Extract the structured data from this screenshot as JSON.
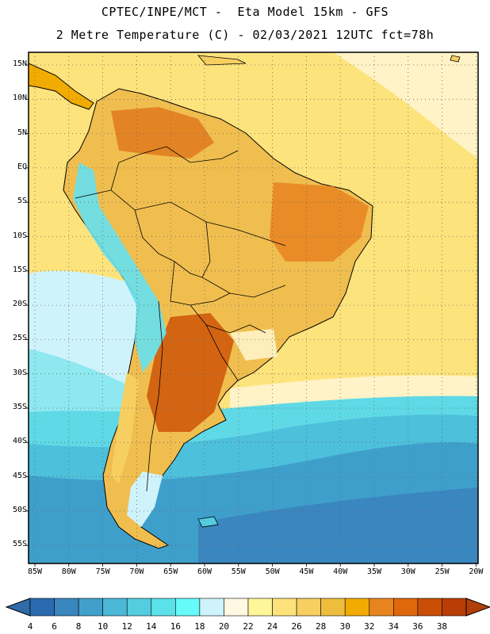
{
  "header": {
    "title_line1": "CPTEC/INPE/MCT -  Eta Model 15km - GFS",
    "title_line2": "2 Metre Temperature (C) - 02/03/2021 12UTC fct=78h"
  },
  "map": {
    "region": "South America",
    "lat_labels": [
      "15N",
      "10N",
      "5N",
      "EQ",
      "5S",
      "10S",
      "15S",
      "20S",
      "25S",
      "30S",
      "35S",
      "40S",
      "45S",
      "50S",
      "55S"
    ],
    "lon_labels": [
      "85W",
      "80W",
      "75W",
      "70W",
      "65W",
      "60W",
      "55W",
      "50W",
      "45W",
      "40W",
      "35W",
      "30W",
      "25W",
      "20W"
    ]
  },
  "colorbar": {
    "labels": [
      "4",
      "6",
      "8",
      "10",
      "12",
      "14",
      "16",
      "18",
      "20",
      "22",
      "24",
      "26",
      "28",
      "30",
      "32",
      "34",
      "36",
      "38"
    ],
    "colors": [
      "#2a6aae",
      "#3a86bf",
      "#41a0cb",
      "#4bb8d8",
      "#55ccdf",
      "#5be1ea",
      "#66fafa",
      "#cff3fb",
      "#fff8e3",
      "#fff599",
      "#fde17a",
      "#f6cf60",
      "#eebd3d",
      "#f2ab00",
      "#e88420",
      "#e0680c",
      "#c94e06",
      "#b93e06"
    ],
    "under_color": "#2f6ba9",
    "over_color": "#b0400a"
  }
}
